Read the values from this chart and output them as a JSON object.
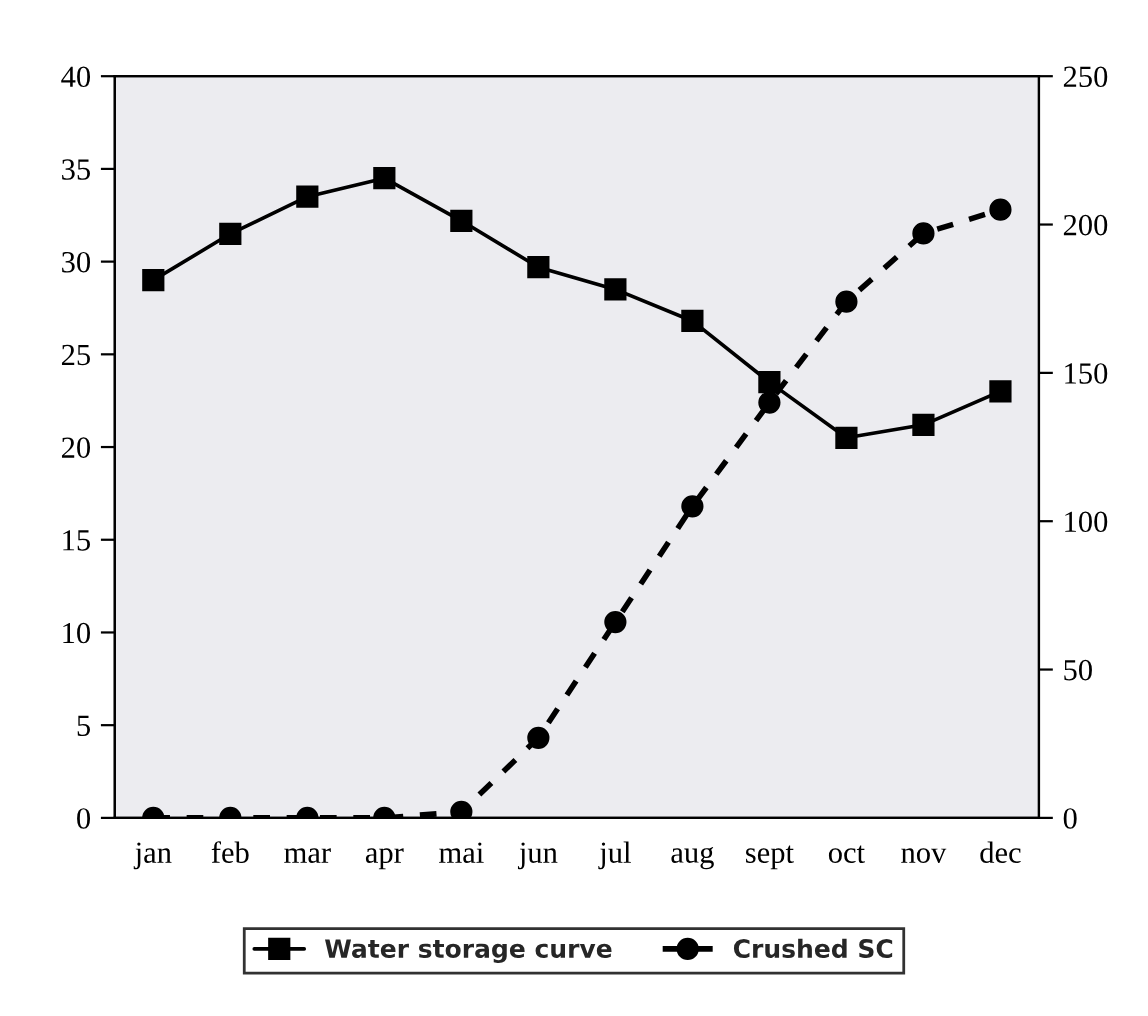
{
  "chart_data": {
    "type": "line",
    "categories": [
      "jan",
      "feb",
      "mar",
      "apr",
      "mai",
      "jun",
      "jul",
      "aug",
      "sept",
      "oct",
      "nov",
      "dec"
    ],
    "series": [
      {
        "name": "Water storage curve",
        "color": "#000000",
        "marker": "square",
        "line_style": "solid",
        "values": [
          29,
          31.5,
          33.5,
          34.5,
          32.2,
          29.7,
          28.5,
          26.8,
          23.5,
          20.5,
          21.2,
          23
        ]
      },
      {
        "name": "Crushed SC",
        "color": "#000000",
        "marker": "circle",
        "line_style": "dashed",
        "axis": "y2",
        "values": [
          0,
          0,
          0,
          0,
          2,
          27,
          66,
          105,
          140,
          174,
          197,
          205
        ]
      }
    ],
    "ylim": [
      0,
      40
    ],
    "yticks": [
      0,
      5,
      10,
      15,
      20,
      25,
      30,
      35,
      40
    ],
    "y2lim": [
      0,
      250
    ],
    "y2ticks": [
      0,
      50,
      100,
      150,
      200,
      250
    ],
    "grid": false,
    "legend": "bottom"
  }
}
